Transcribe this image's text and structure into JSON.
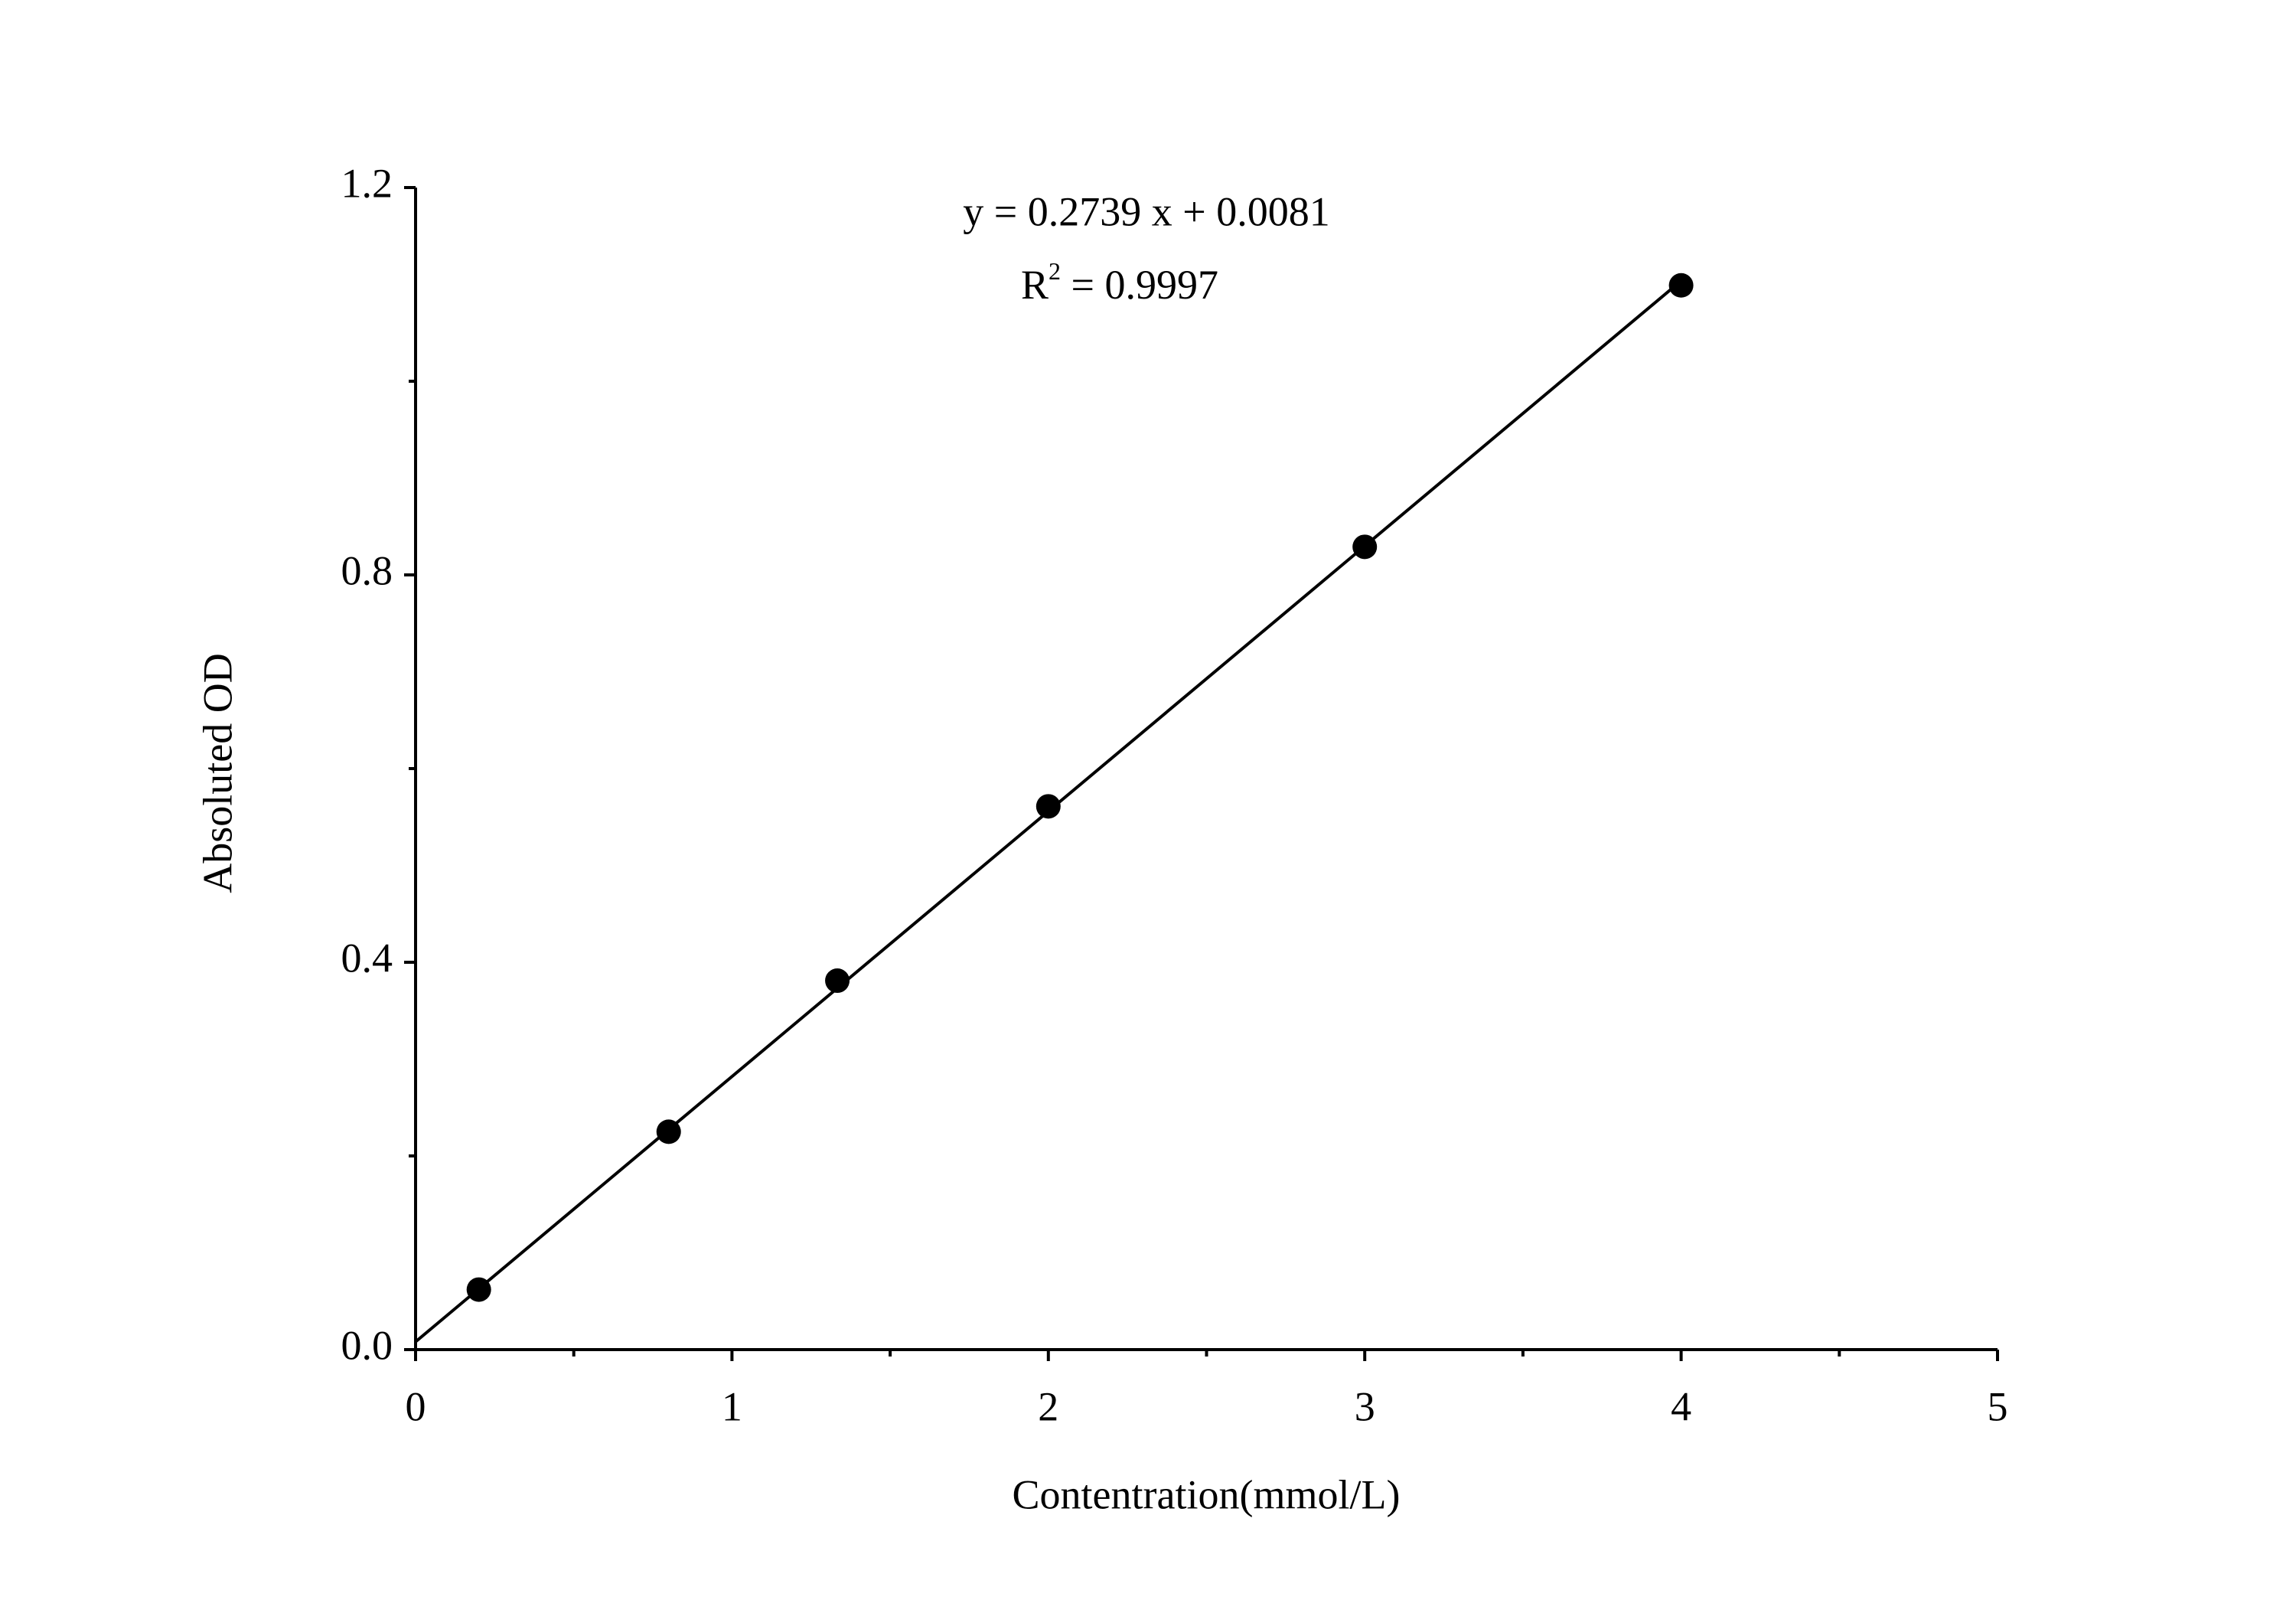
{
  "chart_data": {
    "type": "scatter",
    "x_label": "Contentration(mmol/L)",
    "y_label": "Absoluted OD",
    "equation": "y = 0.2739 x + 0.0081",
    "r2_symbol": "R",
    "r2_superscript": "2",
    "r2_value": " = 0.9997",
    "fit": {
      "slope": 0.2739,
      "intercept": 0.0081
    },
    "x": [
      0.2,
      0.8,
      1.333,
      2,
      3,
      4
    ],
    "series": [
      {
        "name": "OD",
        "color": "#000000",
        "values": [
          0.062,
          0.225,
          0.381,
          0.561,
          0.829,
          1.099
        ]
      }
    ],
    "xlim": [
      0,
      5
    ],
    "xticks": [
      0,
      1,
      2,
      3,
      4,
      5
    ],
    "xminorticks": [
      0.5,
      1.5,
      2.5,
      3.5,
      4.5
    ],
    "ylim": [
      0,
      1.2
    ],
    "yticks": [
      {
        "value": 0,
        "label": "0.0"
      },
      {
        "value": 0.4,
        "label": "0.4"
      },
      {
        "value": 0.8,
        "label": "0.8"
      },
      {
        "value": 1.2,
        "label": "1.2"
      }
    ],
    "yminorticks": [
      0.2,
      0.6,
      1.0
    ],
    "grid": false
  }
}
